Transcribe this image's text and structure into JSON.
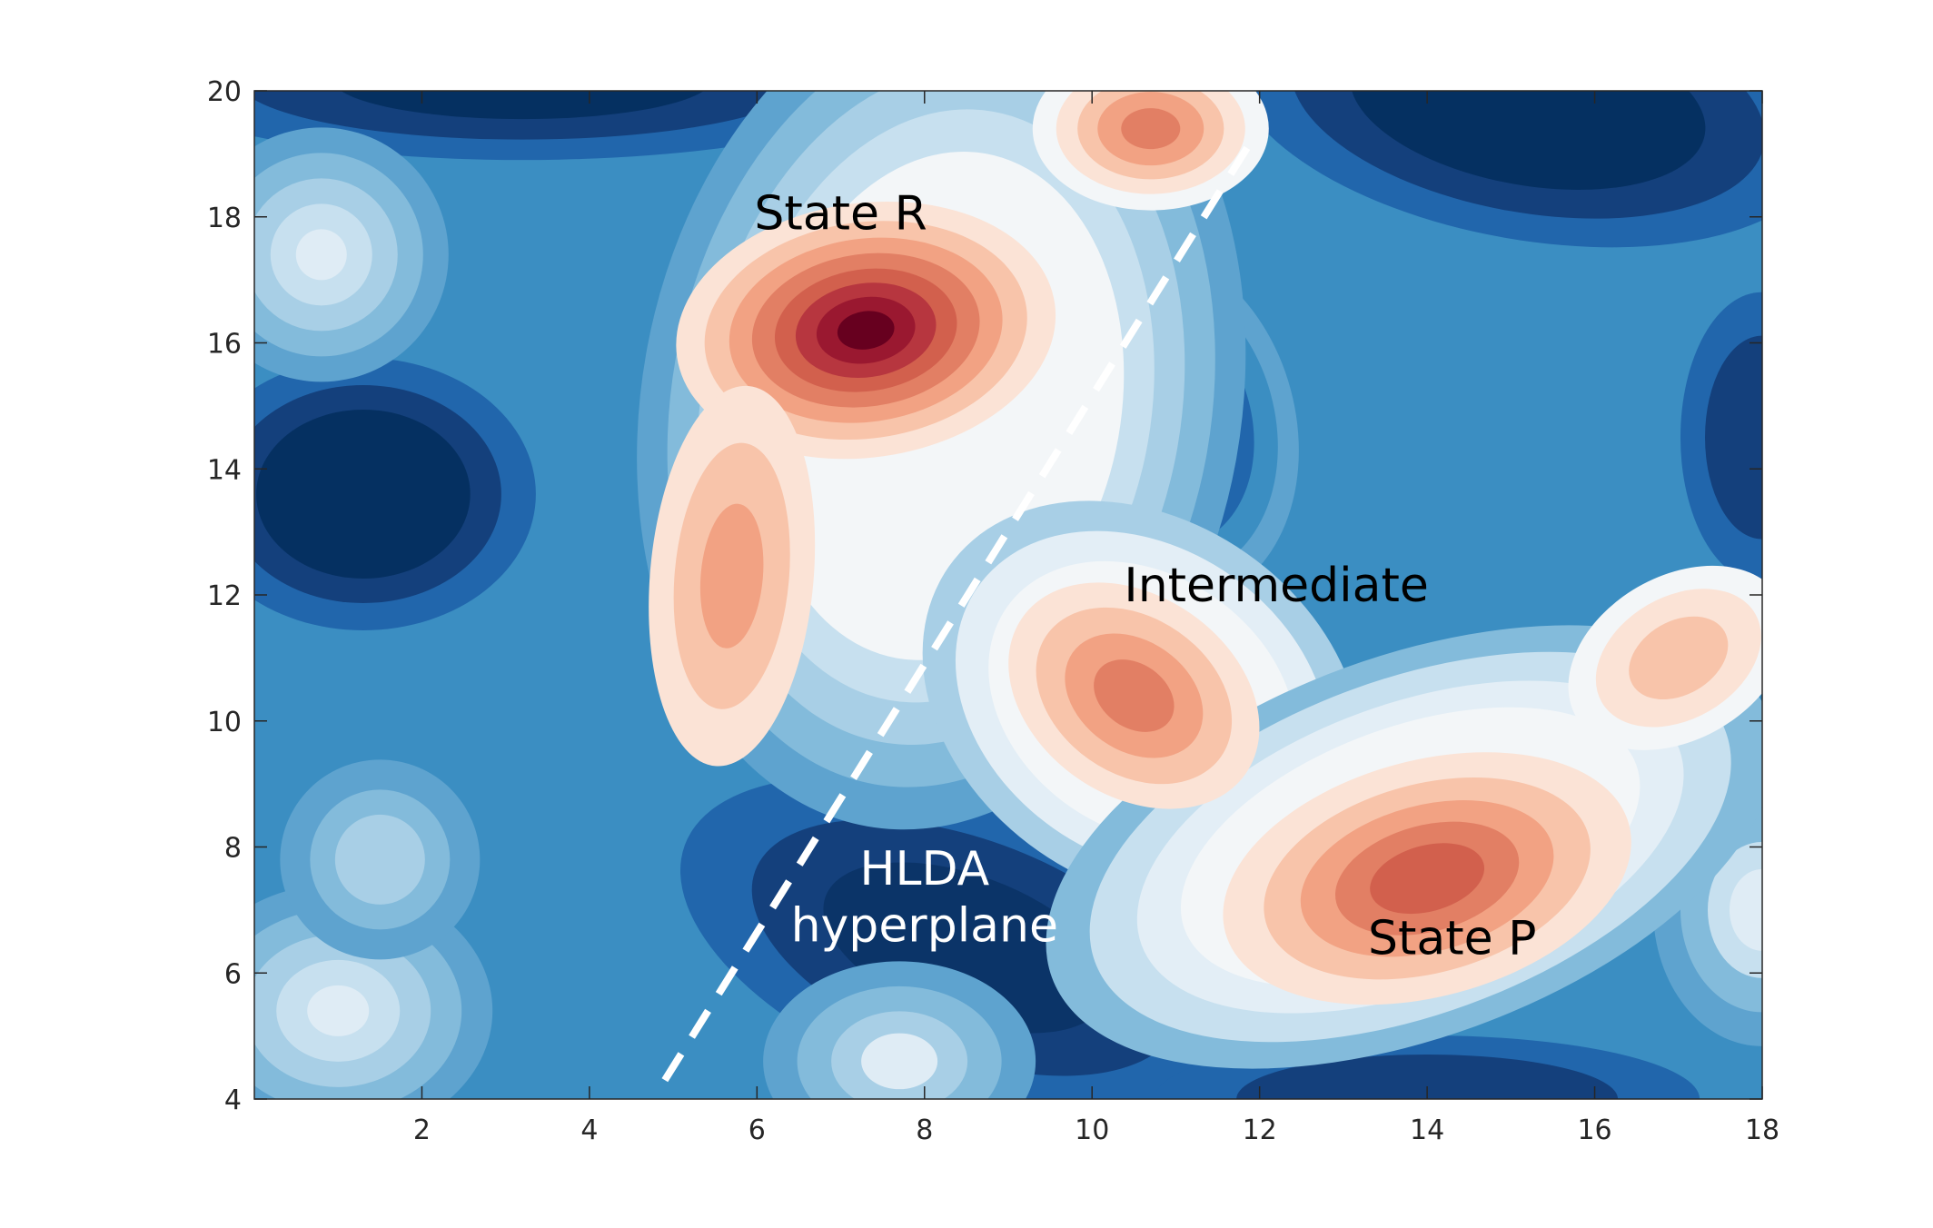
{
  "chart_data": {
    "type": "heatmap",
    "subtype": "filled-contour",
    "title": "",
    "xlabel": "",
    "ylabel": "",
    "xlim": [
      0,
      18
    ],
    "ylim": [
      4,
      20
    ],
    "xticks": [
      2,
      4,
      6,
      8,
      10,
      12,
      14,
      16,
      18
    ],
    "yticks": [
      4,
      6,
      8,
      10,
      12,
      14,
      16,
      18,
      20
    ],
    "grid": false,
    "colormap": "diverging red-white-blue (high = red, low = dark blue)",
    "colors": {
      "high": "#67001f",
      "mid": "#f7f7f7",
      "low": "#053061",
      "dashed_line": "#ffffff"
    },
    "peaks": [
      {
        "x": 7.3,
        "y": 16.2,
        "level": "highest"
      },
      {
        "x": 5.6,
        "y": 12.2,
        "level": "high"
      },
      {
        "x": 10.7,
        "y": 19.4,
        "level": "high"
      },
      {
        "x": 10.5,
        "y": 10.4,
        "level": "high"
      },
      {
        "x": 13.9,
        "y": 7.4,
        "level": "high"
      },
      {
        "x": 17.0,
        "y": 11.0,
        "level": "medium"
      }
    ],
    "basins": [
      {
        "x": 1.5,
        "y": 13.5,
        "level": "lowest"
      },
      {
        "x": 3.5,
        "y": 20.0,
        "level": "lowest"
      },
      {
        "x": 15.0,
        "y": 19.5,
        "level": "lowest"
      },
      {
        "x": 10.7,
        "y": 14.8,
        "level": "low"
      },
      {
        "x": 7.6,
        "y": 6.8,
        "level": "low"
      },
      {
        "x": 10.5,
        "y": 5.0,
        "level": "low"
      },
      {
        "x": 14.0,
        "y": 4.2,
        "level": "low"
      }
    ],
    "dashed_line": {
      "x": [
        4.9,
        11.9
      ],
      "y": [
        4.3,
        19.2
      ],
      "style": "dashed white"
    },
    "annotations": [
      {
        "text": "State R",
        "x": 7.0,
        "y": 17.8,
        "color": "#000000"
      },
      {
        "text": "Intermediate",
        "x": 12.2,
        "y": 11.9,
        "color": "#000000"
      },
      {
        "text": "HLDA",
        "x": 8.0,
        "y": 7.4,
        "color": "#ffffff"
      },
      {
        "text": "hyperplane",
        "x": 8.0,
        "y": 6.5,
        "color": "#ffffff"
      },
      {
        "text": "State P",
        "x": 14.3,
        "y": 6.3,
        "color": "#000000"
      }
    ]
  }
}
